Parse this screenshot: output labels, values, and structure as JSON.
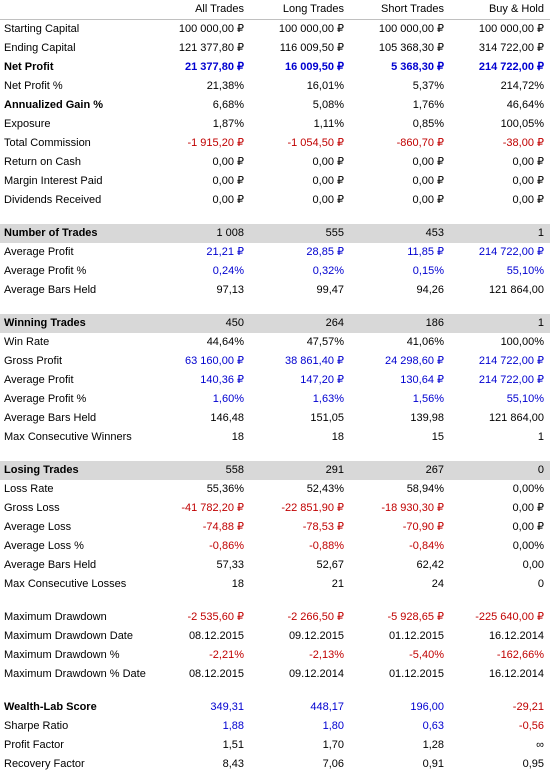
{
  "columns": [
    "All Trades",
    "Long Trades",
    "Short Trades",
    "Buy & Hold"
  ],
  "colors": {
    "positive": "#0000d0",
    "negative": "#c00000",
    "section_bg": "#d8d8d8"
  },
  "rows": [
    {
      "label": "Starting Capital",
      "vals": [
        "100 000,00 ₽",
        "100 000,00 ₽",
        "100 000,00 ₽",
        "100 000,00 ₽"
      ]
    },
    {
      "label": "Ending Capital",
      "vals": [
        "121 377,80 ₽",
        "116 009,50 ₽",
        "105 368,30 ₽",
        "314 722,00 ₽"
      ]
    },
    {
      "label": "Net Profit",
      "bold": true,
      "vals": [
        "21 377,80 ₽",
        "16 009,50 ₽",
        "5 368,30 ₽",
        "214 722,00 ₽"
      ],
      "cls": [
        "blue",
        "blue",
        "blue",
        "blue"
      ]
    },
    {
      "label": "Net Profit %",
      "vals": [
        "21,38%",
        "16,01%",
        "5,37%",
        "214,72%"
      ]
    },
    {
      "label": "Annualized Gain %",
      "labelBold": true,
      "vals": [
        "6,68%",
        "5,08%",
        "1,76%",
        "46,64%"
      ]
    },
    {
      "label": "Exposure",
      "vals": [
        "1,87%",
        "1,11%",
        "0,85%",
        "100,05%"
      ]
    },
    {
      "label": "Total Commission",
      "vals": [
        "-1 915,20 ₽",
        "-1 054,50 ₽",
        "-860,70 ₽",
        "-38,00 ₽"
      ],
      "cls": [
        "red",
        "red",
        "red",
        "red"
      ]
    },
    {
      "label": "Return on Cash",
      "vals": [
        "0,00 ₽",
        "0,00 ₽",
        "0,00 ₽",
        "0,00 ₽"
      ]
    },
    {
      "label": "Margin Interest Paid",
      "vals": [
        "0,00 ₽",
        "0,00 ₽",
        "0,00 ₽",
        "0,00 ₽"
      ]
    },
    {
      "label": "Dividends Received",
      "vals": [
        "0,00 ₽",
        "0,00 ₽",
        "0,00 ₽",
        "0,00 ₽"
      ]
    },
    {
      "spacer": true
    },
    {
      "label": "Number of Trades",
      "section": true,
      "vals": [
        "1 008",
        "555",
        "453",
        "1"
      ]
    },
    {
      "label": "Average Profit",
      "vals": [
        "21,21 ₽",
        "28,85 ₽",
        "11,85 ₽",
        "214 722,00 ₽"
      ],
      "cls": [
        "blue",
        "blue",
        "blue",
        "blue"
      ]
    },
    {
      "label": "Average Profit %",
      "vals": [
        "0,24%",
        "0,32%",
        "0,15%",
        "55,10%"
      ],
      "cls": [
        "blue",
        "blue",
        "blue",
        "blue"
      ]
    },
    {
      "label": "Average Bars Held",
      "vals": [
        "97,13",
        "99,47",
        "94,26",
        "121 864,00"
      ]
    },
    {
      "spacer": true
    },
    {
      "label": "Winning Trades",
      "section": true,
      "vals": [
        "450",
        "264",
        "186",
        "1"
      ]
    },
    {
      "label": "Win Rate",
      "vals": [
        "44,64%",
        "47,57%",
        "41,06%",
        "100,00%"
      ]
    },
    {
      "label": "Gross Profit",
      "vals": [
        "63 160,00 ₽",
        "38 861,40 ₽",
        "24 298,60 ₽",
        "214 722,00 ₽"
      ],
      "cls": [
        "blue",
        "blue",
        "blue",
        "blue"
      ]
    },
    {
      "label": "Average Profit",
      "vals": [
        "140,36 ₽",
        "147,20 ₽",
        "130,64 ₽",
        "214 722,00 ₽"
      ],
      "cls": [
        "blue",
        "blue",
        "blue",
        "blue"
      ]
    },
    {
      "label": "Average Profit %",
      "vals": [
        "1,60%",
        "1,63%",
        "1,56%",
        "55,10%"
      ],
      "cls": [
        "blue",
        "blue",
        "blue",
        "blue"
      ]
    },
    {
      "label": "Average Bars Held",
      "vals": [
        "146,48",
        "151,05",
        "139,98",
        "121 864,00"
      ]
    },
    {
      "label": "Max Consecutive Winners",
      "vals": [
        "18",
        "18",
        "15",
        "1"
      ]
    },
    {
      "spacer": true
    },
    {
      "label": "Losing Trades",
      "section": true,
      "vals": [
        "558",
        "291",
        "267",
        "0"
      ]
    },
    {
      "label": "Loss Rate",
      "vals": [
        "55,36%",
        "52,43%",
        "58,94%",
        "0,00%"
      ]
    },
    {
      "label": "Gross Loss",
      "vals": [
        "-41 782,20 ₽",
        "-22 851,90 ₽",
        "-18 930,30 ₽",
        "0,00 ₽"
      ],
      "cls": [
        "red",
        "red",
        "red",
        ""
      ]
    },
    {
      "label": "Average Loss",
      "vals": [
        "-74,88 ₽",
        "-78,53 ₽",
        "-70,90 ₽",
        "0,00 ₽"
      ],
      "cls": [
        "red",
        "red",
        "red",
        ""
      ]
    },
    {
      "label": "Average Loss %",
      "vals": [
        "-0,86%",
        "-0,88%",
        "-0,84%",
        "0,00%"
      ],
      "cls": [
        "red",
        "red",
        "red",
        ""
      ]
    },
    {
      "label": "Average Bars Held",
      "vals": [
        "57,33",
        "52,67",
        "62,42",
        "0,00"
      ]
    },
    {
      "label": "Max Consecutive Losses",
      "vals": [
        "18",
        "21",
        "24",
        "0"
      ]
    },
    {
      "spacer": true
    },
    {
      "label": "Maximum Drawdown",
      "vals": [
        "-2 535,60 ₽",
        "-2 266,50 ₽",
        "-5 928,65 ₽",
        "-225 640,00 ₽"
      ],
      "cls": [
        "red",
        "red",
        "red",
        "red"
      ]
    },
    {
      "label": "Maximum Drawdown Date",
      "vals": [
        "08.12.2015",
        "09.12.2015",
        "01.12.2015",
        "16.12.2014"
      ]
    },
    {
      "label": "Maximum Drawdown %",
      "vals": [
        "-2,21%",
        "-2,13%",
        "-5,40%",
        "-162,66%"
      ],
      "cls": [
        "red",
        "red",
        "red",
        "red"
      ]
    },
    {
      "label": "Maximum Drawdown % Date",
      "vals": [
        "08.12.2015",
        "09.12.2014",
        "01.12.2015",
        "16.12.2014"
      ]
    },
    {
      "spacer": true
    },
    {
      "label": "Wealth-Lab Score",
      "labelBold": true,
      "vals": [
        "349,31",
        "448,17",
        "196,00",
        "-29,21"
      ],
      "cls": [
        "blue",
        "blue",
        "blue",
        "red"
      ]
    },
    {
      "label": "Sharpe Ratio",
      "vals": [
        "1,88",
        "1,80",
        "0,63",
        "-0,56"
      ],
      "cls": [
        "blue",
        "blue",
        "blue",
        "red"
      ]
    },
    {
      "label": "Profit Factor",
      "vals": [
        "1,51",
        "1,70",
        "1,28",
        "∞"
      ]
    },
    {
      "label": "Recovery Factor",
      "vals": [
        "8,43",
        "7,06",
        "0,91",
        "0,95"
      ]
    }
  ]
}
